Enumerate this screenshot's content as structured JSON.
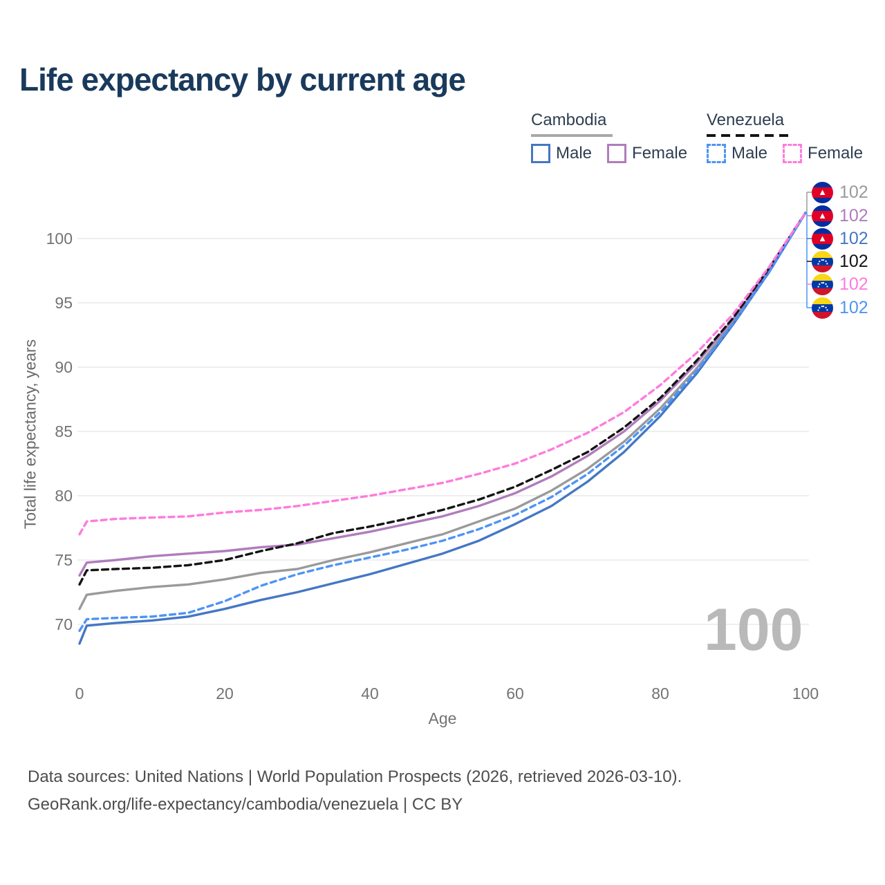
{
  "title": "Life expectancy by current age",
  "watermark": "100",
  "legend": {
    "groups": [
      {
        "name": "Cambodia",
        "line_style": "solid",
        "underline_color": "#a8a8a8",
        "items": [
          {
            "label": "Male",
            "color": "#4477c4",
            "dashed": false
          },
          {
            "label": "Female",
            "color": "#b07cbc",
            "dashed": false
          }
        ]
      },
      {
        "name": "Venezuela",
        "line_style": "dashed",
        "underline_color": "#141414",
        "items": [
          {
            "label": "Male",
            "color": "#4d94f5",
            "dashed": true
          },
          {
            "label": "Female",
            "color": "#ff7bdc",
            "dashed": true
          }
        ]
      }
    ]
  },
  "end_labels": [
    {
      "icon": "cambodia-flag-icon",
      "flag": "cambodia",
      "value": "102",
      "color": "#9a9a9a"
    },
    {
      "icon": "cambodia-flag-icon",
      "flag": "cambodia",
      "value": "102",
      "color": "#b07cbc"
    },
    {
      "icon": "cambodia-flag-icon",
      "flag": "cambodia",
      "value": "102",
      "color": "#4477c4"
    },
    {
      "icon": "venezuela-flag-icon",
      "flag": "venezuela",
      "value": "102",
      "color": "#141414"
    },
    {
      "icon": "venezuela-flag-icon",
      "flag": "venezuela",
      "value": "102",
      "color": "#ff7bdc"
    },
    {
      "icon": "venezuela-flag-icon",
      "flag": "venezuela",
      "value": "102",
      "color": "#4d94f5"
    }
  ],
  "footer": {
    "line1": "Data sources: United Nations | World Population Prospects (2026, retrieved 2026-03-10).",
    "line2": "GeoRank.org/life-expectancy/cambodia/venezuela | CC BY"
  },
  "chart_data": {
    "type": "line",
    "title": "Life expectancy by current age",
    "xlabel": "Age",
    "ylabel": "Total life expectancy, years",
    "xlim": [
      0,
      100
    ],
    "ylim": [
      67,
      103
    ],
    "x_ticks": [
      0,
      20,
      40,
      60,
      80,
      100
    ],
    "y_ticks": [
      70,
      75,
      80,
      85,
      90,
      95,
      100
    ],
    "grid": "horizontal-only",
    "legend_position": "top-right",
    "x": [
      0,
      1,
      5,
      10,
      15,
      20,
      25,
      30,
      35,
      40,
      45,
      50,
      55,
      60,
      65,
      70,
      75,
      80,
      85,
      90,
      95,
      100
    ],
    "series": [
      {
        "name": "Cambodia",
        "group": "Cambodia",
        "sex": "total",
        "color": "#9a9a9a",
        "dash": null,
        "values": [
          71.2,
          72.3,
          72.6,
          72.9,
          73.1,
          73.5,
          74.0,
          74.3,
          75.0,
          75.6,
          76.3,
          77.0,
          78.0,
          79.0,
          80.4,
          82.1,
          84.2,
          86.8,
          89.9,
          93.5,
          97.5,
          102
        ]
      },
      {
        "name": "Cambodia Female",
        "group": "Cambodia",
        "sex": "female",
        "color": "#b07cbc",
        "dash": null,
        "values": [
          73.8,
          74.8,
          75.0,
          75.3,
          75.5,
          75.7,
          76.0,
          76.2,
          76.7,
          77.2,
          77.8,
          78.4,
          79.2,
          80.2,
          81.5,
          83.1,
          85.0,
          87.4,
          90.3,
          93.7,
          97.6,
          102
        ]
      },
      {
        "name": "Cambodia Male",
        "group": "Cambodia",
        "sex": "male",
        "color": "#4477c4",
        "dash": null,
        "values": [
          68.5,
          69.9,
          70.1,
          70.3,
          70.6,
          71.2,
          71.9,
          72.5,
          73.2,
          73.9,
          74.7,
          75.5,
          76.5,
          77.8,
          79.2,
          81.1,
          83.4,
          86.2,
          89.5,
          93.3,
          97.4,
          102
        ]
      },
      {
        "name": "Venezuela",
        "group": "Venezuela",
        "sex": "total",
        "color": "#141414",
        "dash": "9 6",
        "values": [
          73.1,
          74.2,
          74.3,
          74.4,
          74.6,
          75.0,
          75.7,
          76.3,
          77.1,
          77.6,
          78.2,
          78.9,
          79.7,
          80.7,
          82.0,
          83.4,
          85.3,
          87.6,
          90.5,
          93.8,
          97.7,
          102
        ]
      },
      {
        "name": "Venezuela Male",
        "group": "Venezuela",
        "sex": "male",
        "color": "#4d94f5",
        "dash": "8 6",
        "values": [
          69.5,
          70.4,
          70.5,
          70.6,
          70.9,
          71.8,
          73.0,
          73.9,
          74.6,
          75.2,
          75.8,
          76.5,
          77.4,
          78.5,
          79.9,
          81.7,
          83.9,
          86.5,
          89.7,
          93.4,
          97.4,
          102
        ]
      },
      {
        "name": "Venezuela Female",
        "group": "Venezuela",
        "sex": "female",
        "color": "#ff7bdc",
        "dash": "8 6",
        "values": [
          77.0,
          78.0,
          78.2,
          78.3,
          78.4,
          78.7,
          78.9,
          79.2,
          79.6,
          80.0,
          80.5,
          81.0,
          81.7,
          82.5,
          83.6,
          84.9,
          86.5,
          88.6,
          91.1,
          94.1,
          97.8,
          102
        ]
      }
    ]
  }
}
